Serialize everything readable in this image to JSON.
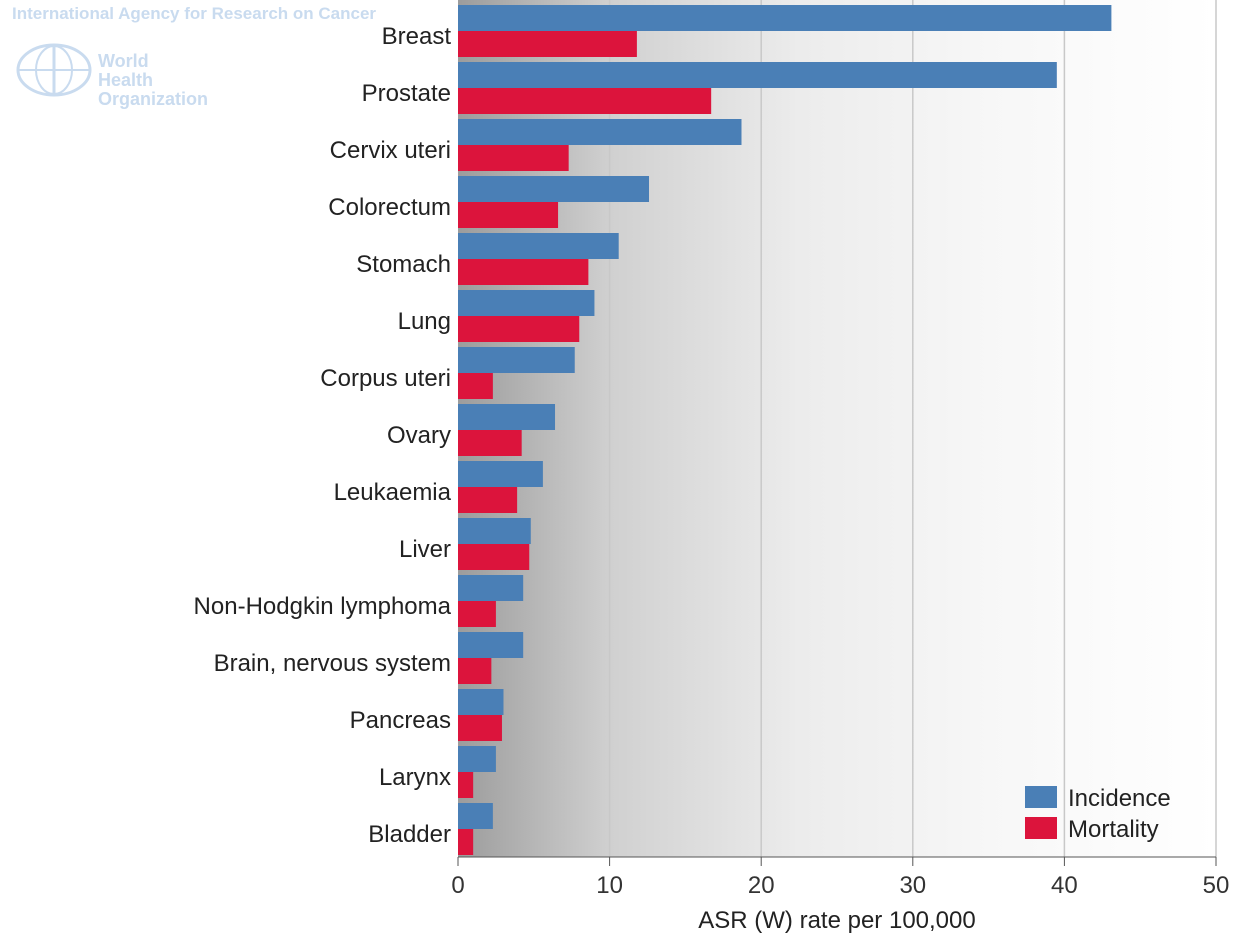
{
  "watermark": {
    "agency": "International Agency for Research on Cancer",
    "who_line1": "World Health",
    "who_line2": "Organization"
  },
  "chart_data": {
    "type": "bar",
    "orientation": "horizontal",
    "categories": [
      "Breast",
      "Prostate",
      "Cervix uteri",
      "Colorectum",
      "Stomach",
      "Lung",
      "Corpus uteri",
      "Ovary",
      "Leukaemia",
      "Liver",
      "Non-Hodgkin lymphoma",
      "Brain, nervous system",
      "Pancreas",
      "Larynx",
      "Bladder"
    ],
    "series": [
      {
        "name": "Incidence",
        "color": "#4a7fb6",
        "values": [
          43.1,
          39.5,
          18.7,
          12.6,
          10.6,
          9.0,
          7.7,
          6.4,
          5.6,
          4.8,
          4.3,
          4.3,
          3.0,
          2.5,
          2.3
        ]
      },
      {
        "name": "Mortality",
        "color": "#dc143c",
        "values": [
          11.8,
          16.7,
          7.3,
          6.6,
          8.6,
          8.0,
          2.3,
          4.2,
          3.9,
          4.7,
          2.5,
          2.2,
          2.9,
          1.0,
          1.0
        ]
      }
    ],
    "xlabel": "ASR (W) rate per 100,000",
    "xlim": [
      0,
      50
    ],
    "xticks": [
      0,
      10,
      20,
      30,
      40,
      50
    ],
    "grid": true,
    "legend": "bottom-right"
  }
}
